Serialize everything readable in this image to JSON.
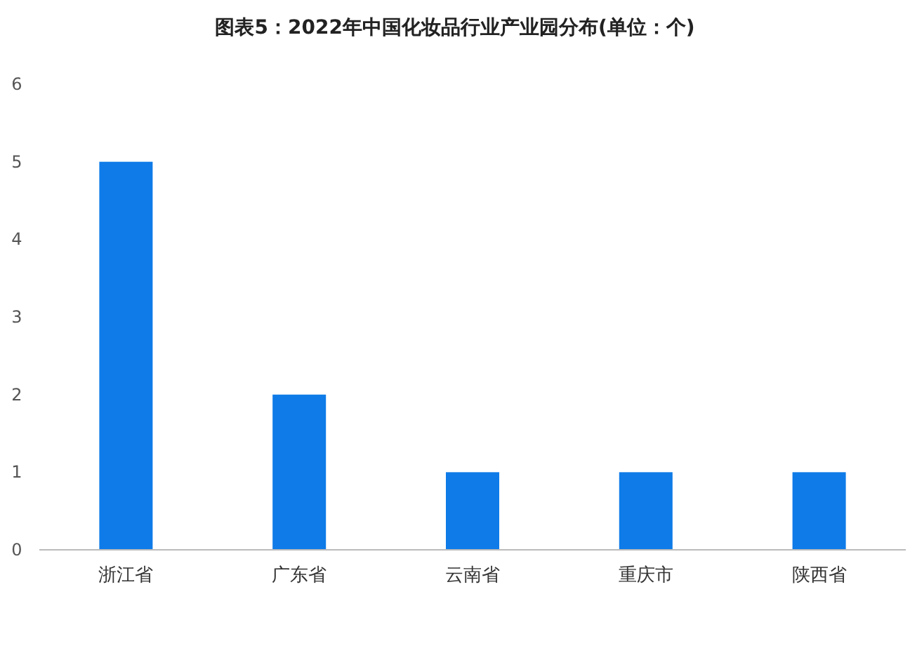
{
  "chart_data": {
    "type": "bar",
    "title": "图表5：2022年中国化妆品行业产业园分布(单位：个)",
    "categories": [
      "浙江省",
      "广东省",
      "云南省",
      "重庆市",
      "陕西省"
    ],
    "values": [
      5,
      2,
      1,
      1,
      1
    ],
    "color": "#0e7be8",
    "ylim": [
      0,
      6
    ],
    "yticks": [
      0,
      1,
      2,
      3,
      4,
      5,
      6
    ]
  }
}
